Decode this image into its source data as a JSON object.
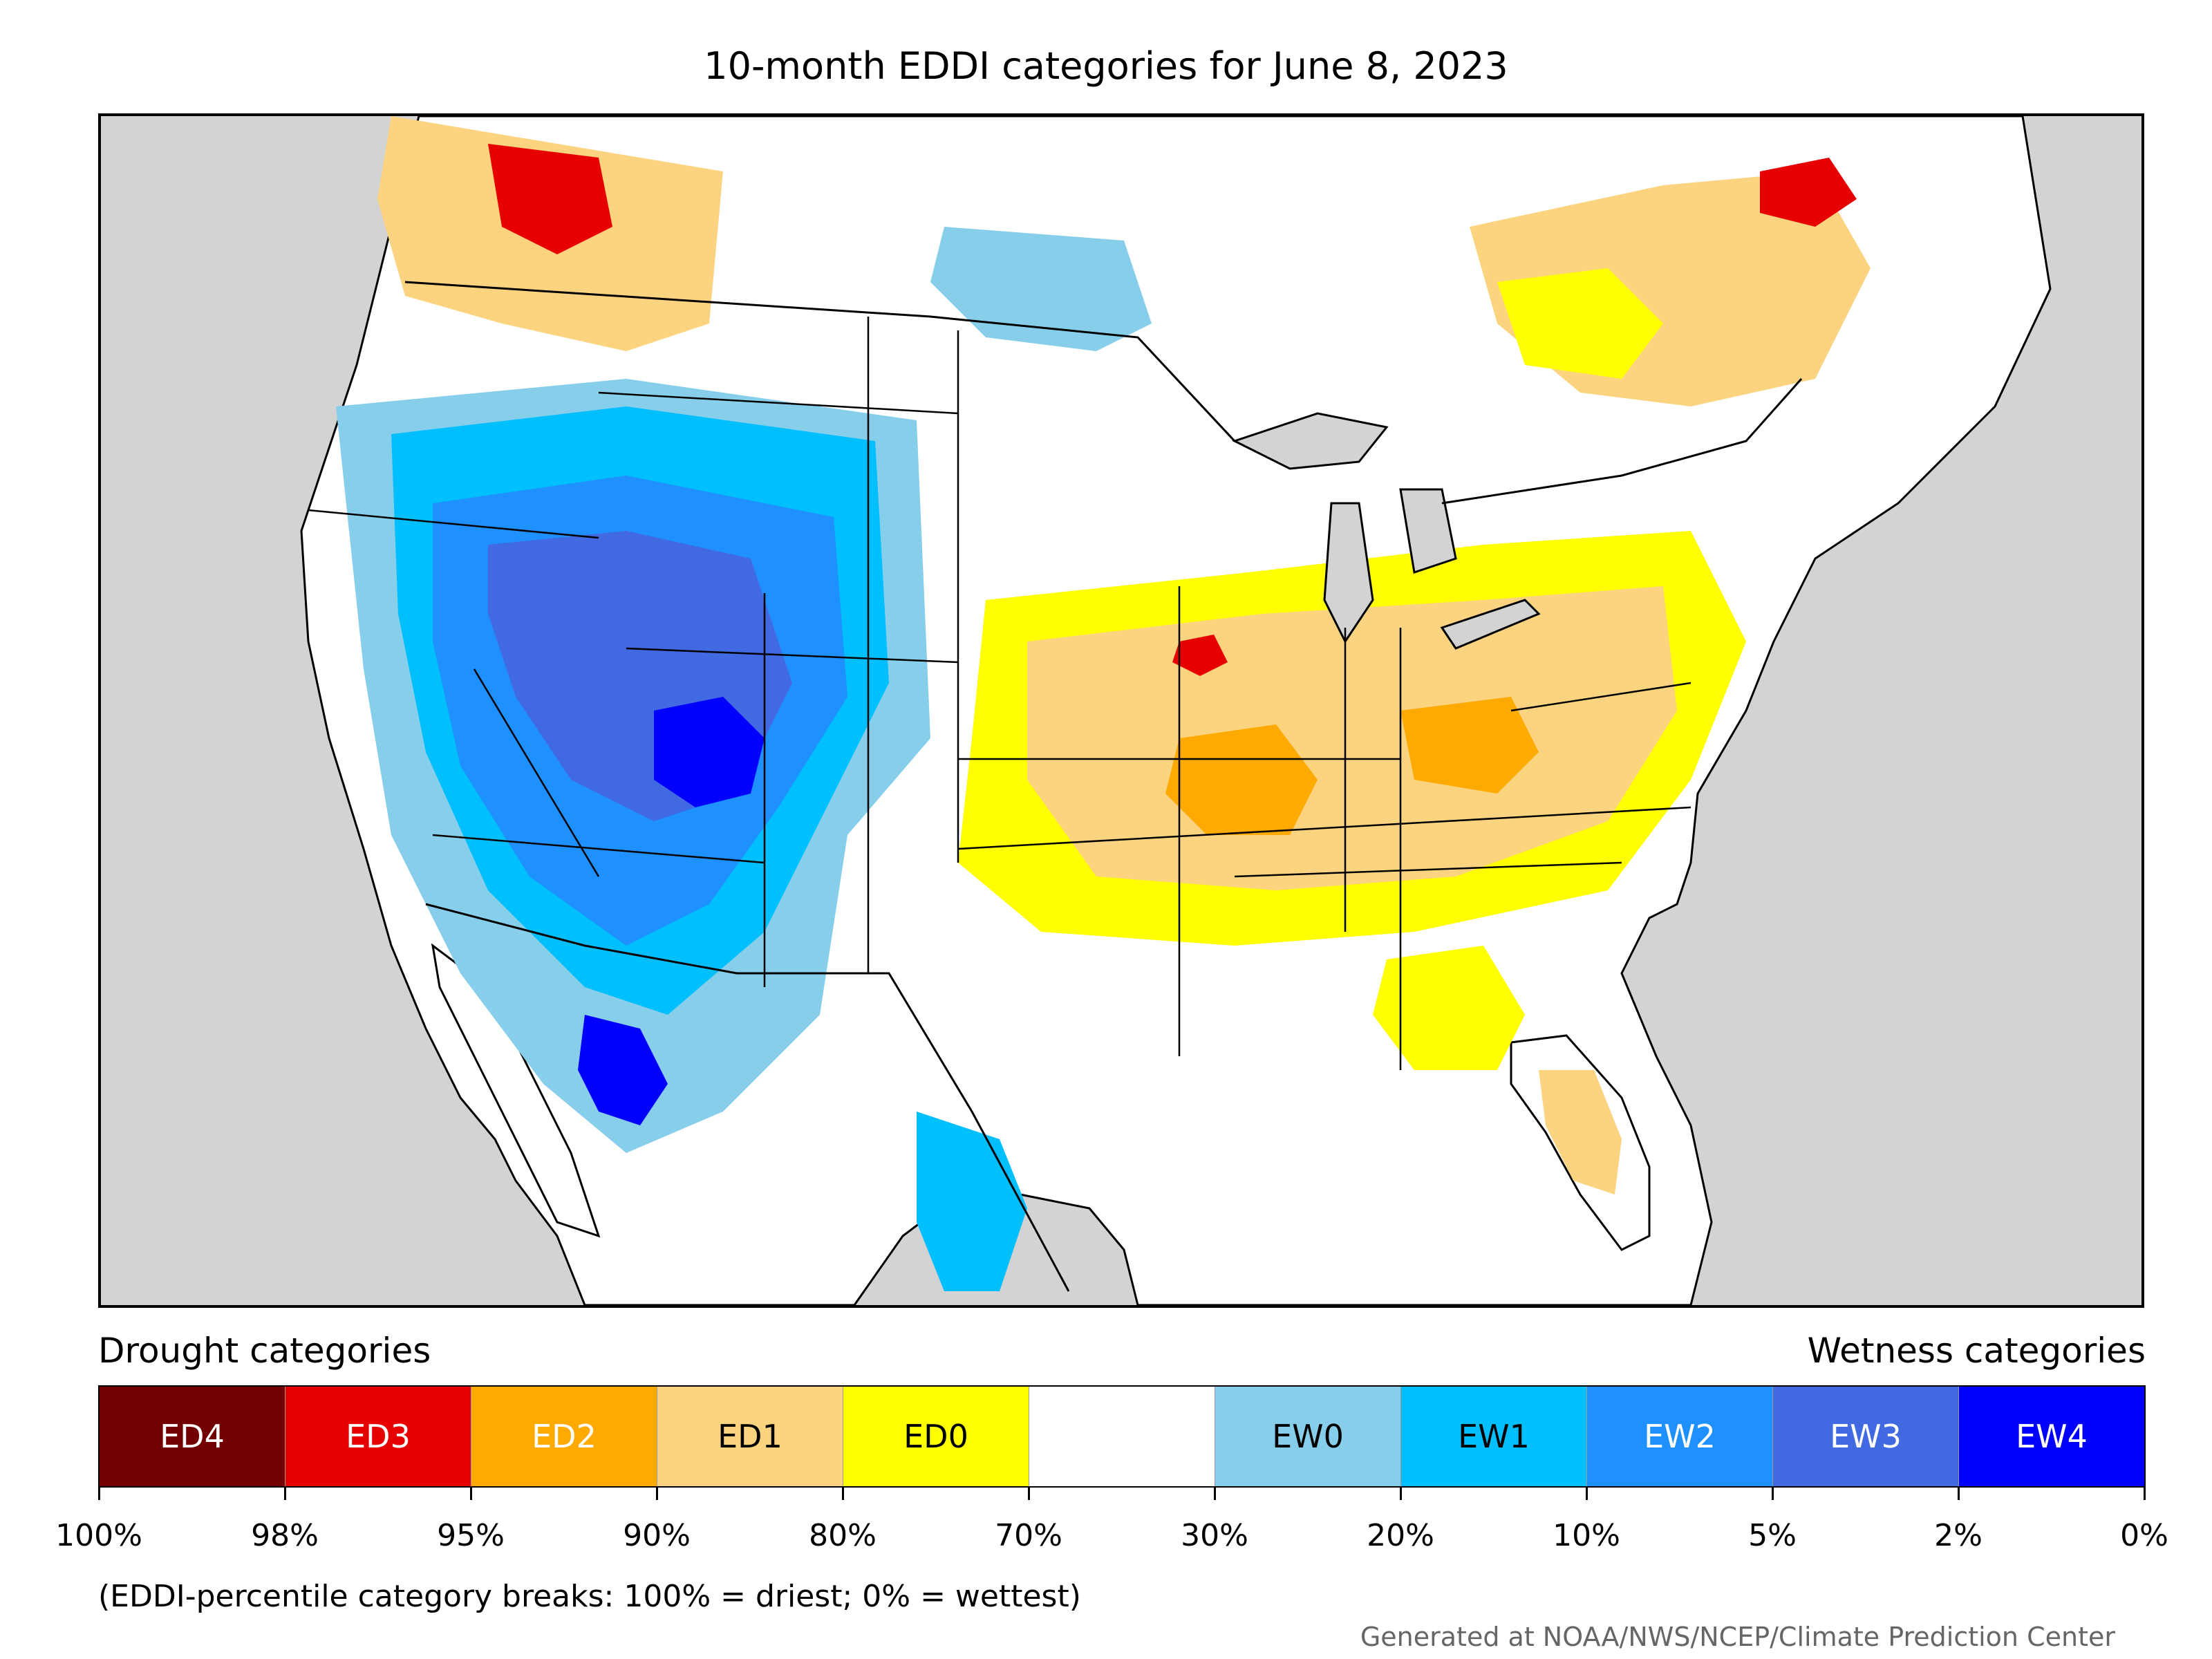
{
  "title": "10-month EDDI categories for June 8, 2023",
  "legend": {
    "drought_header": "Drought categories",
    "wetness_header": "Wetness categories",
    "categories": [
      {
        "label": "ED4",
        "color": "#730000",
        "text_color": "#ffffff"
      },
      {
        "label": "ED3",
        "color": "#e60000",
        "text_color": "#ffffff"
      },
      {
        "label": "ED2",
        "color": "#ffaa00",
        "text_color": "#ffffff"
      },
      {
        "label": "ED1",
        "color": "#fcd37f",
        "text_color": "#000000"
      },
      {
        "label": "ED0",
        "color": "#ffff00",
        "text_color": "#000000"
      },
      {
        "label": "",
        "color": "#ffffff",
        "text_color": "#000000"
      },
      {
        "label": "EW0",
        "color": "#87ceeb",
        "text_color": "#000000"
      },
      {
        "label": "EW1",
        "color": "#00bfff",
        "text_color": "#000000"
      },
      {
        "label": "EW2",
        "color": "#1e90ff",
        "text_color": "#ffffff"
      },
      {
        "label": "EW3",
        "color": "#4169e1",
        "text_color": "#ffffff"
      },
      {
        "label": "EW4",
        "color": "#0000ff",
        "text_color": "#ffffff"
      }
    ],
    "ticks": [
      "100%",
      "98%",
      "95%",
      "90%",
      "80%",
      "70%",
      "30%",
      "20%",
      "10%",
      "5%",
      "2%",
      "0%"
    ]
  },
  "footnote": "(EDDI-percentile category breaks: 100% = driest; 0% = wettest)",
  "credit": "Generated at NOAA/NWS/NCEP/Climate Prediction Center",
  "colors": {
    "background": "#d3d3d3",
    "land": "#ffffff",
    "border": "#000000"
  }
}
